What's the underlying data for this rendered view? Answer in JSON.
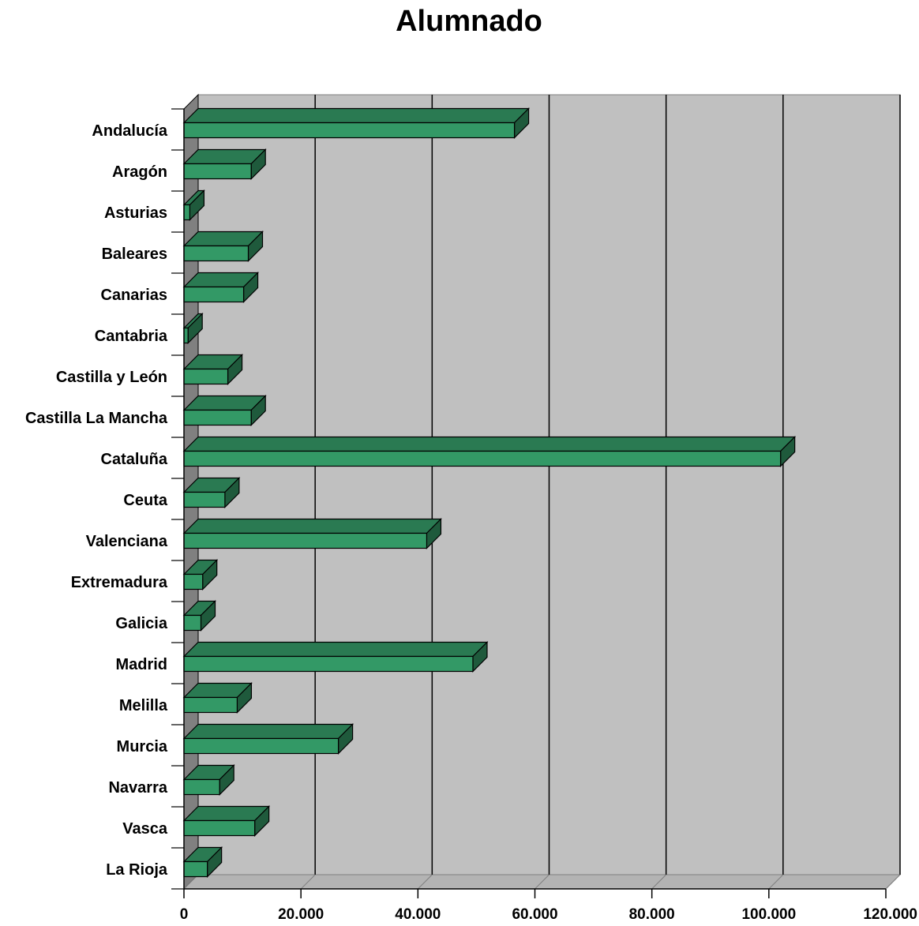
{
  "chart_data": {
    "type": "bar",
    "orientation": "horizontal",
    "title": "Alumnado",
    "xlabel": "",
    "ylabel": "",
    "categories": [
      "Andalucía",
      "Aragón",
      "Asturias",
      "Baleares",
      "Canarias",
      "Cantabria",
      "Castilla y León",
      "Castilla La Mancha",
      "Cataluña",
      "Ceuta",
      "Valenciana",
      "Extremadura",
      "Galicia",
      "Madrid",
      "Melilla",
      "Murcia",
      "Navarra",
      "Vasca",
      "La Rioja"
    ],
    "values": [
      56500,
      11500,
      1000,
      11000,
      10200,
      700,
      7500,
      11500,
      102000,
      7000,
      41500,
      3200,
      2900,
      49400,
      9100,
      26400,
      6100,
      12100,
      4000
    ],
    "xlim": [
      0,
      120000
    ],
    "x_ticks": [
      "0",
      "20.000",
      "40.000",
      "60.000",
      "80.000",
      "100.000",
      "120.000"
    ],
    "grid": true,
    "legend": "none",
    "style": "3d",
    "colors": {
      "bar_front": "#339966",
      "bar_top": "#2a7a52",
      "bar_side": "#1f5a3c",
      "plot_back": "#c0c0c0",
      "plot_wall": "#808080",
      "plot_floor": "#b3b3b3",
      "gridline": "#000000"
    }
  }
}
